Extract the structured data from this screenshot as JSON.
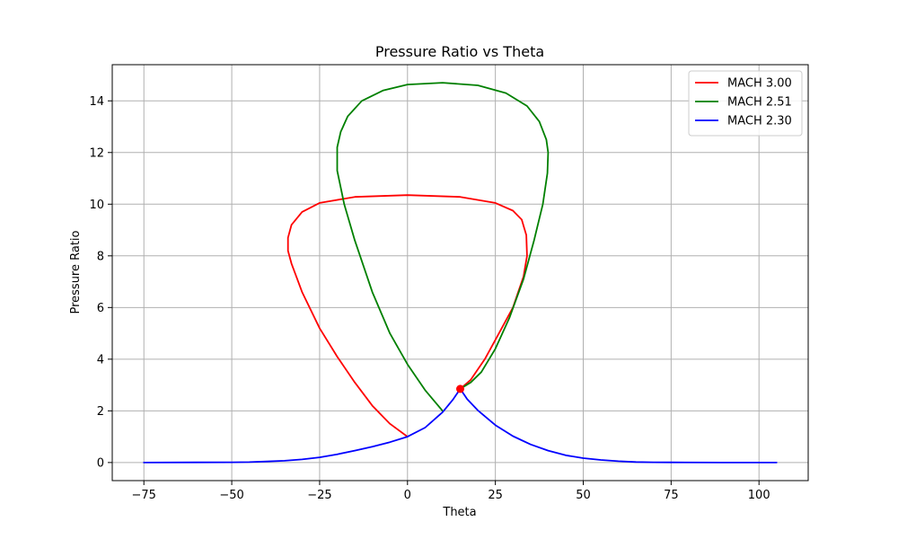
{
  "chart_data": {
    "type": "line",
    "title": "Pressure Ratio vs Theta",
    "xlabel": "Theta",
    "ylabel": "Pressure Ratio",
    "xlim": [
      -84.0,
      114.0
    ],
    "ylim": [
      -0.7,
      15.4
    ],
    "xticks": [
      -75,
      -50,
      -25,
      0,
      25,
      50,
      75,
      100
    ],
    "yticks": [
      0,
      2,
      4,
      6,
      8,
      10,
      12,
      14
    ],
    "grid": true,
    "legend_position": "top-right",
    "series": [
      {
        "name": "MACH 3.00",
        "color": "#ff0000",
        "points": [
          [
            0,
            1.0
          ],
          [
            -5,
            1.5
          ],
          [
            -10,
            2.2
          ],
          [
            -15,
            3.1
          ],
          [
            -20,
            4.1
          ],
          [
            -25,
            5.2
          ],
          [
            -30,
            6.6
          ],
          [
            -33,
            7.7
          ],
          [
            -34,
            8.2
          ],
          [
            -34,
            8.7
          ],
          [
            -33,
            9.2
          ],
          [
            -30,
            9.7
          ],
          [
            -25,
            10.05
          ],
          [
            -15,
            10.28
          ],
          [
            0,
            10.35
          ],
          [
            15,
            10.28
          ],
          [
            25,
            10.05
          ],
          [
            30,
            9.75
          ],
          [
            32.5,
            9.4
          ],
          [
            33.8,
            8.8
          ],
          [
            34,
            8.0
          ],
          [
            33,
            7.2
          ],
          [
            30,
            6.0
          ],
          [
            26,
            5.0
          ],
          [
            22,
            4.0
          ],
          [
            18,
            3.2
          ],
          [
            15,
            2.85
          ]
        ]
      },
      {
        "name": "MACH 2.51",
        "color": "#008000",
        "points": [
          [
            10,
            2.0
          ],
          [
            5,
            2.8
          ],
          [
            0,
            3.8
          ],
          [
            -5,
            5.0
          ],
          [
            -10,
            6.6
          ],
          [
            -15,
            8.6
          ],
          [
            -18,
            10.0
          ],
          [
            -20,
            11.3
          ],
          [
            -20,
            12.2
          ],
          [
            -19,
            12.8
          ],
          [
            -17,
            13.4
          ],
          [
            -13,
            14.0
          ],
          [
            -7,
            14.4
          ],
          [
            0,
            14.63
          ],
          [
            10,
            14.7
          ],
          [
            20,
            14.6
          ],
          [
            28,
            14.3
          ],
          [
            34,
            13.8
          ],
          [
            37.5,
            13.2
          ],
          [
            39.5,
            12.5
          ],
          [
            40,
            12.0
          ],
          [
            39.8,
            11.2
          ],
          [
            38.5,
            10.0
          ],
          [
            36,
            8.6
          ],
          [
            33,
            7.1
          ],
          [
            29,
            5.6
          ],
          [
            25,
            4.4
          ],
          [
            21,
            3.5
          ],
          [
            18,
            3.1
          ],
          [
            15,
            2.85
          ]
        ]
      },
      {
        "name": "MACH 2.30",
        "color": "#0000ff",
        "points": [
          [
            -75,
            0.0
          ],
          [
            -60,
            0.005
          ],
          [
            -50,
            0.01
          ],
          [
            -45,
            0.015
          ],
          [
            -40,
            0.04
          ],
          [
            -35,
            0.07
          ],
          [
            -30,
            0.12
          ],
          [
            -25,
            0.2
          ],
          [
            -20,
            0.32
          ],
          [
            -15,
            0.46
          ],
          [
            -10,
            0.61
          ],
          [
            -5,
            0.79
          ],
          [
            0,
            1.0
          ],
          [
            5,
            1.35
          ],
          [
            10,
            1.95
          ],
          [
            13,
            2.45
          ],
          [
            15,
            2.85
          ],
          [
            17,
            2.45
          ],
          [
            20,
            2.02
          ],
          [
            25,
            1.45
          ],
          [
            30,
            1.02
          ],
          [
            35,
            0.7
          ],
          [
            40,
            0.46
          ],
          [
            45,
            0.28
          ],
          [
            50,
            0.17
          ],
          [
            55,
            0.1
          ],
          [
            60,
            0.05
          ],
          [
            65,
            0.02
          ],
          [
            70,
            0.01
          ],
          [
            75,
            0.005
          ],
          [
            90,
            0.0
          ],
          [
            105,
            0.0
          ]
        ]
      }
    ],
    "marker": {
      "x": 15,
      "y": 2.85,
      "color": "#ff0000"
    }
  }
}
